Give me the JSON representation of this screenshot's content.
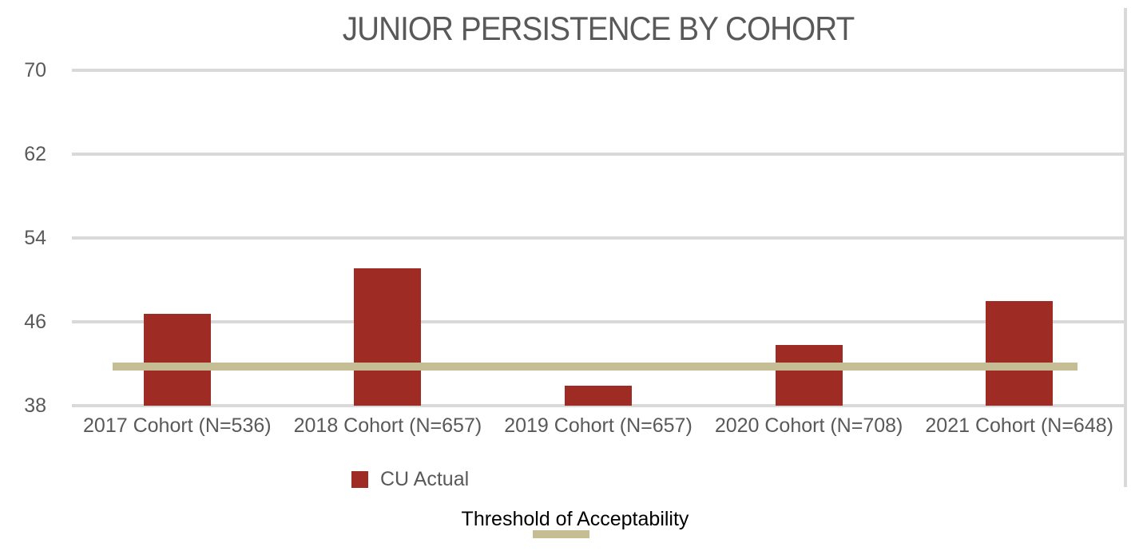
{
  "colors": {
    "bar": "#9E2C24",
    "threshold_line": "#C5BD94",
    "gridline": "#D9D9D9",
    "axis_text": "#595959",
    "threshold_label_text": "#000000",
    "background": "#FFFFFF"
  },
  "legend": {
    "bar_label": "CU Actual",
    "threshold_label": "Threshold of Acceptability"
  },
  "chart_data": {
    "type": "bar",
    "title": "JUNIOR PERSISTENCE BY COHORT",
    "categories": [
      "2017 Cohort (N=536)",
      "2018 Cohort (N=657)",
      "2019 Cohort (N=657)",
      "2020 Cohort (N=708)",
      "2021 Cohort (N=648)"
    ],
    "series": [
      {
        "name": "CU Actual",
        "values": [
          46.8,
          51.1,
          39.9,
          43.8,
          48.0
        ]
      }
    ],
    "threshold": {
      "name": "Threshold of Acceptability",
      "value": 41.7
    },
    "xlabel": "",
    "ylabel": "",
    "y_ticks": [
      38,
      46,
      54,
      62,
      70
    ],
    "ylim": [
      38,
      70
    ],
    "grid": true,
    "gridlines": "horizontal",
    "legend_position": "bottom"
  }
}
